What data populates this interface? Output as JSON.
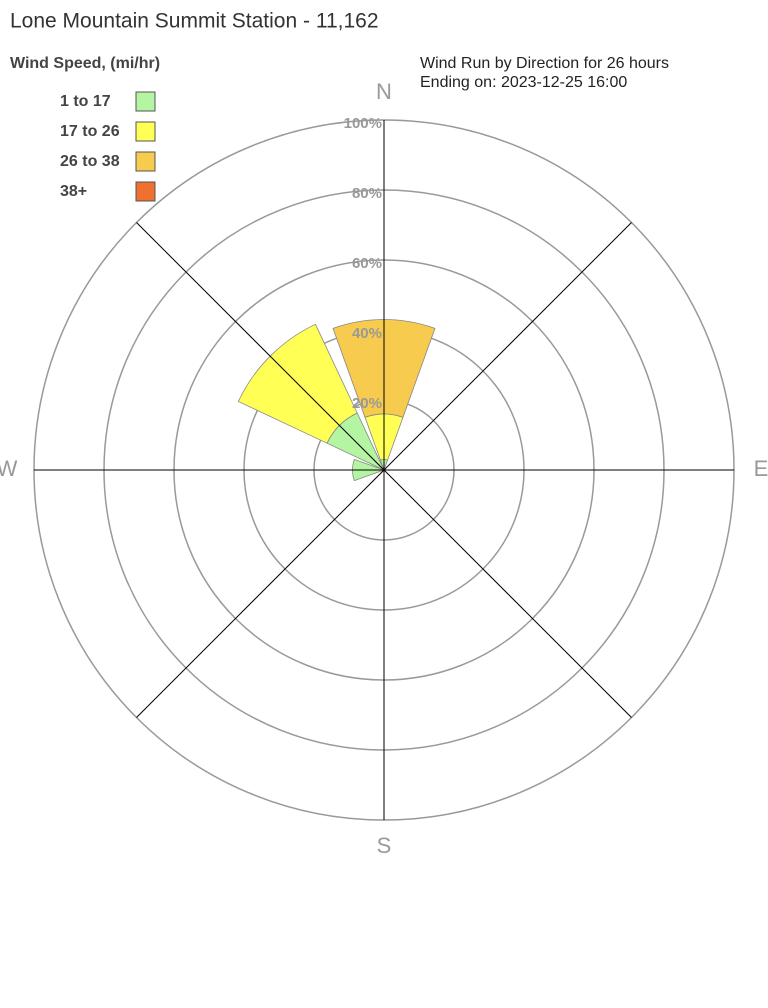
{
  "chart_data": {
    "type": "windrose",
    "title": "Lone Mountain Summit Station - 11,162",
    "subtitle": [
      "Wind Run by Direction for 26 hours",
      "Ending on: 2023-12-25 16:00"
    ],
    "legend_title": "Wind Speed, (mi/hr)",
    "categories": [
      "N",
      null,
      "E",
      null,
      "S",
      null,
      "W",
      null
    ],
    "series": [
      {
        "name": "1 to 17",
        "color": "#b3f5a0",
        "values": [
          3,
          0,
          0,
          0,
          0,
          0,
          9,
          18
        ]
      },
      {
        "name": "17 to 26",
        "color": "#ffff55",
        "values": [
          13,
          0,
          0,
          0,
          0,
          0,
          0,
          28
        ]
      },
      {
        "name": "26 to 38",
        "color": "#f7cb4d",
        "values": [
          27,
          0,
          0,
          0,
          0,
          0,
          0,
          0
        ]
      },
      {
        "name": "38+",
        "color": "#f07030",
        "values": [
          0,
          0,
          0,
          0,
          0,
          0,
          0,
          0
        ]
      }
    ],
    "rlim": [
      0,
      100
    ],
    "rticks": [
      {
        "value": 20,
        "label": "20%"
      },
      {
        "value": 40,
        "label": "40%"
      },
      {
        "value": 60,
        "label": "60%"
      },
      {
        "value": 80,
        "label": "80%"
      },
      {
        "value": 100,
        "label": "100%"
      }
    ]
  }
}
